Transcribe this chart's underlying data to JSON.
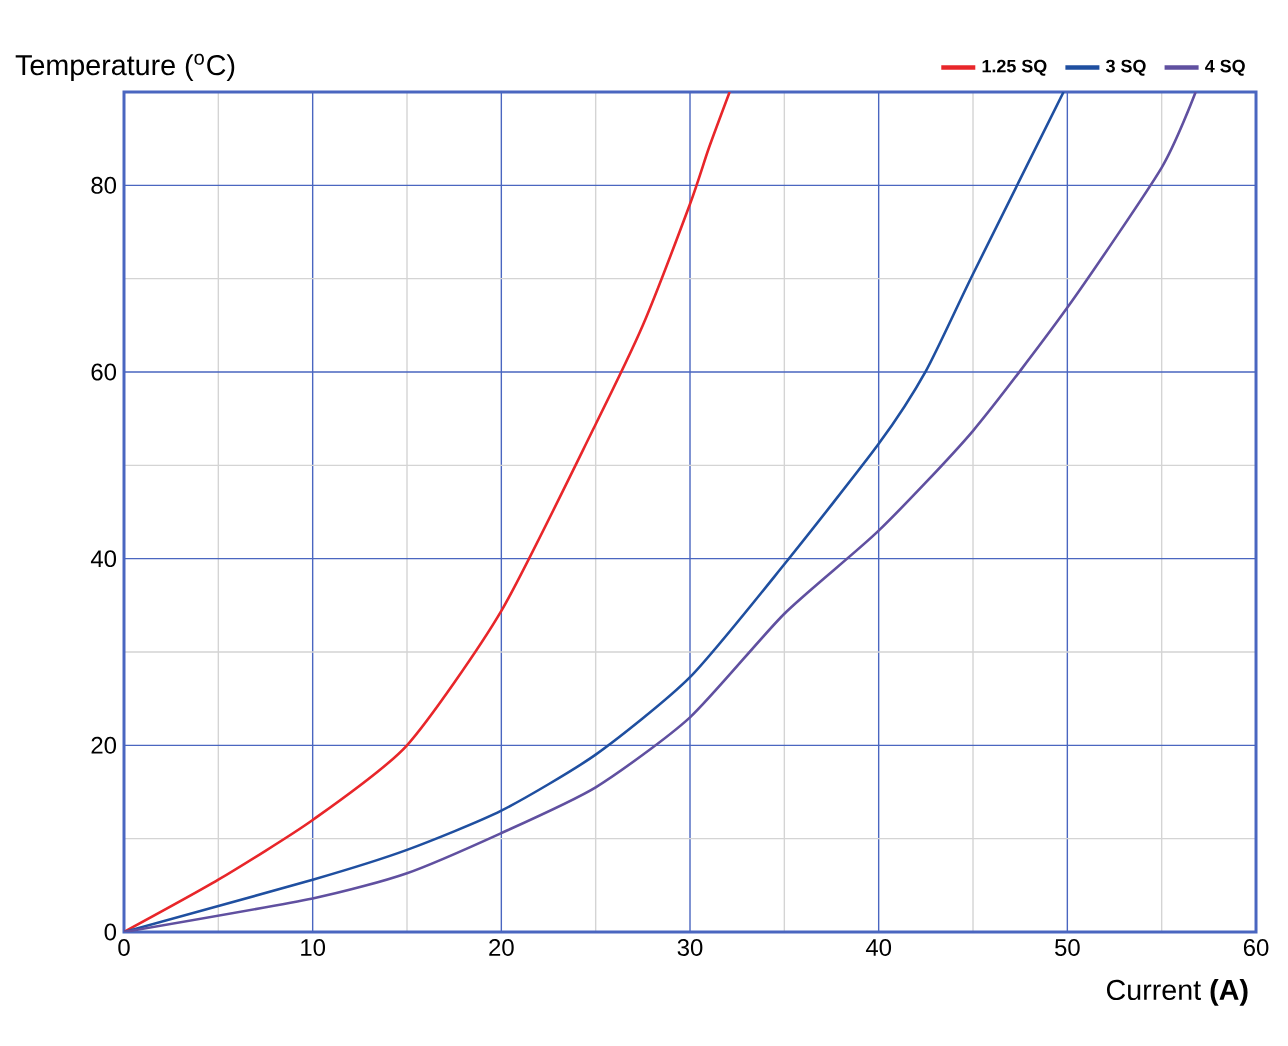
{
  "chart_data": {
    "type": "line",
    "ylabel": "Temperature ($^{o}$C)",
    "xlabel": "Current **(A)**",
    "xlim": [
      0,
      60
    ],
    "ylim": [
      0,
      90
    ],
    "xticks": [
      0,
      10,
      20,
      30,
      40,
      50,
      60
    ],
    "yticks": [
      0,
      20,
      40,
      60,
      80
    ],
    "grid": true,
    "legend": "top right",
    "marker": "none",
    "line_style": "solid",
    "series": [
      {
        "name": "1.25 SQ",
        "color": "#e8262a",
        "x": [
          0,
          5,
          10,
          15,
          20,
          25,
          27.5,
          30,
          31,
          32.1
        ],
        "values": [
          0,
          5.6,
          12,
          20,
          34.4,
          54.4,
          65,
          78,
          84,
          90
        ]
      },
      {
        "name": "3 SQ",
        "color": "#1f4fa0",
        "x": [
          0,
          10,
          15,
          20,
          25,
          30,
          35,
          40,
          42.5,
          45,
          49.8
        ],
        "values": [
          0,
          5.6,
          8.8,
          13,
          19,
          27.3,
          39.4,
          52.3,
          60.1,
          70.5,
          90
        ]
      },
      {
        "name": "4 SQ",
        "color": "#6050a0",
        "x": [
          0,
          10,
          15,
          20,
          25,
          30,
          35,
          40,
          45,
          50,
          55,
          56.8
        ],
        "values": [
          0,
          3.6,
          6.3,
          10.6,
          15.5,
          23,
          34.1,
          43,
          53.7,
          66.9,
          81.9,
          90
        ]
      }
    ]
  }
}
